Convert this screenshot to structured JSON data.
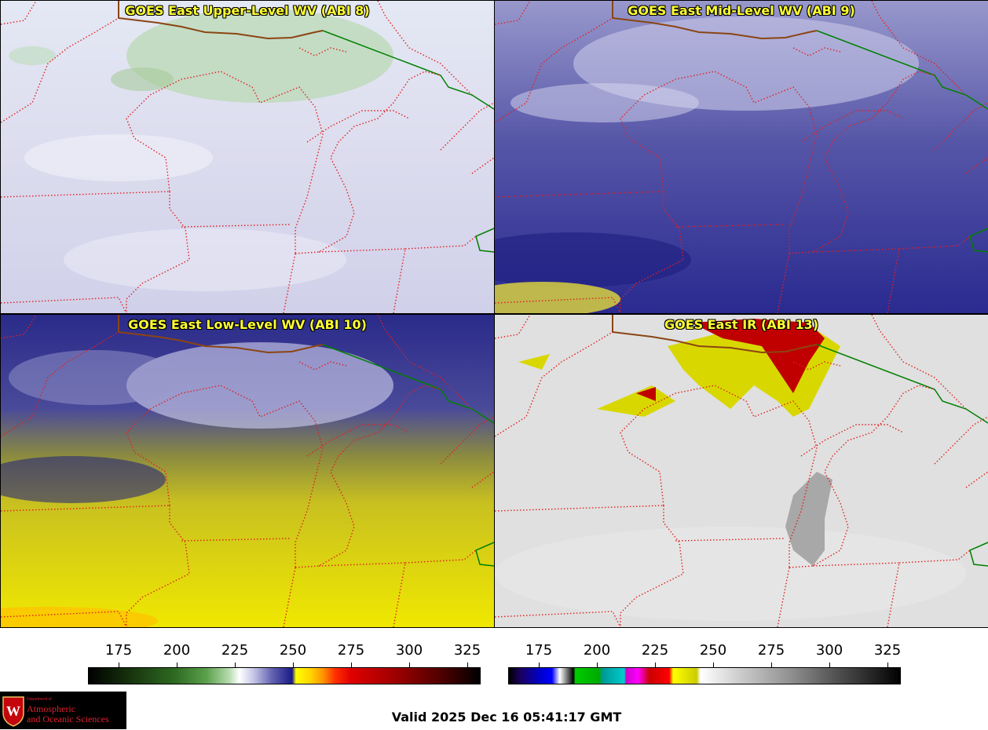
{
  "panels": {
    "upper": {
      "title": "GOES East Upper-Level WV (ABI 8)"
    },
    "mid": {
      "title": "GOES East Mid-Level WV (ABI 9)"
    },
    "low": {
      "title": "GOES East Low-Level WV (ABI 10)"
    },
    "ir": {
      "title": "GOES East IR (ABI 13)"
    }
  },
  "colorbars": {
    "wv": {
      "ticks": [
        "175",
        "200",
        "225",
        "250",
        "275",
        "300",
        "325"
      ]
    },
    "ir": {
      "ticks": [
        "175",
        "200",
        "225",
        "250",
        "275",
        "300",
        "325"
      ]
    }
  },
  "logo": {
    "dept": "Department of",
    "line1": "Atmospheric",
    "line2": "and Oceanic Sciences",
    "icon": "uw-crest-icon"
  },
  "valid_time": "Valid 2025 Dec 16 05:41:17 GMT",
  "colors": {
    "state_borders": "#e02020",
    "national_border": "#8b4513",
    "province_border": "#008000",
    "title_text": "#ffff33"
  }
}
